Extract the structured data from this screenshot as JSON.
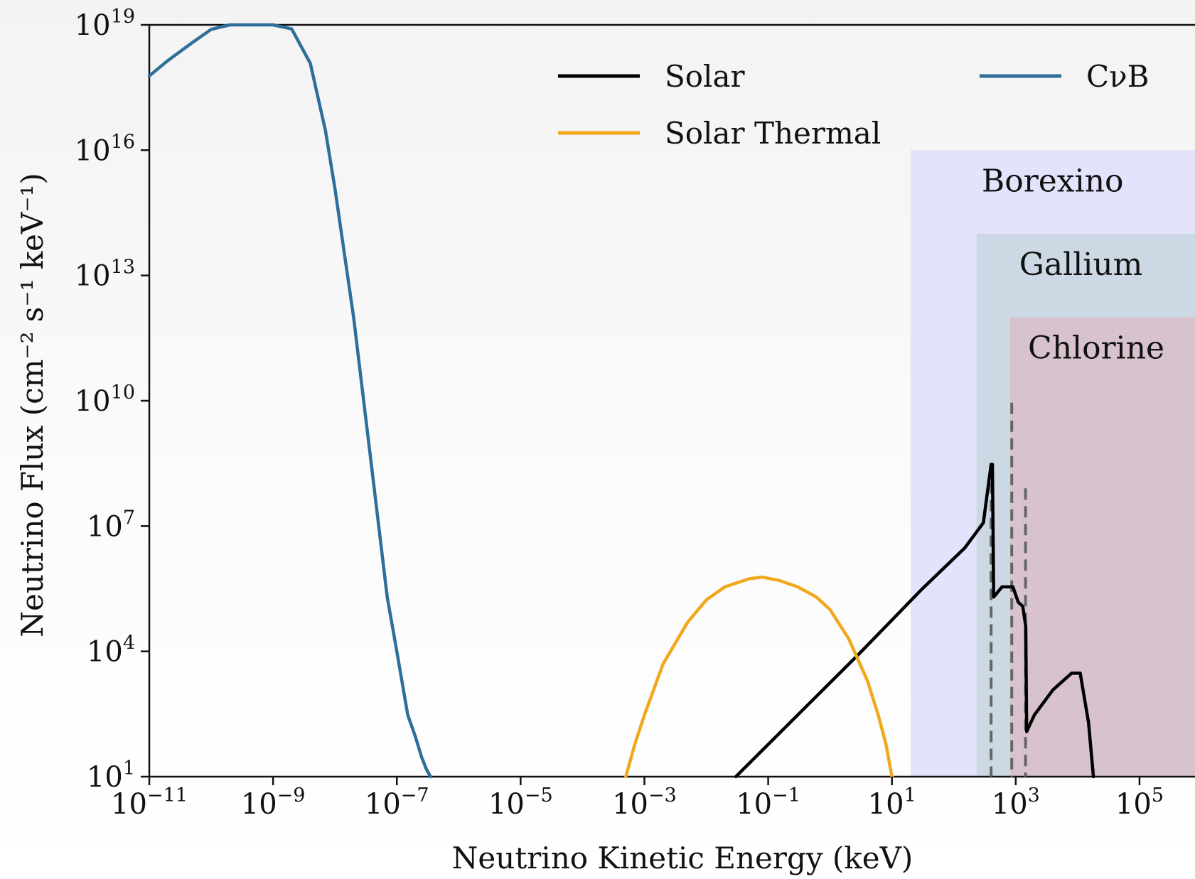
{
  "chart_data": {
    "type": "line",
    "xscale": "log",
    "yscale": "log",
    "xlim": [
      1e-11,
      1000000.0
    ],
    "ylim": [
      10,
      1e+19
    ],
    "xlabel": "Neutrino Kinetic Energy (keV)",
    "ylabel": "Neutrino Flux (cm⁻² s⁻¹ keV⁻¹)",
    "x_ticks": [
      {
        "base": "10",
        "exp": "−11",
        "value": 1e-11
      },
      {
        "base": "10",
        "exp": "−9",
        "value": 1e-09
      },
      {
        "base": "10",
        "exp": "−7",
        "value": 1e-07
      },
      {
        "base": "10",
        "exp": "−5",
        "value": 1e-05
      },
      {
        "base": "10",
        "exp": "−3",
        "value": 0.001
      },
      {
        "base": "10",
        "exp": "−1",
        "value": 0.1
      },
      {
        "base": "10",
        "exp": "1",
        "value": 10
      },
      {
        "base": "10",
        "exp": "3",
        "value": 1000
      },
      {
        "base": "10",
        "exp": "5",
        "value": 100000
      }
    ],
    "y_ticks": [
      {
        "base": "10",
        "exp": "1",
        "value": 10
      },
      {
        "base": "10",
        "exp": "4",
        "value": 10000.0
      },
      {
        "base": "10",
        "exp": "7",
        "value": 10000000.0
      },
      {
        "base": "10",
        "exp": "10",
        "value": 10000000000.0
      },
      {
        "base": "10",
        "exp": "13",
        "value": 10000000000000.0
      },
      {
        "base": "10",
        "exp": "16",
        "value": 1e+16
      },
      {
        "base": "10",
        "exp": "19",
        "value": 1e+19
      }
    ],
    "legend": {
      "placement": "upper right"
    },
    "series": [
      {
        "name": "Solar",
        "color": "#000000",
        "x": [
          0.03,
          0.3,
          3,
          30,
          150,
          300,
          400,
          420,
          440,
          600,
          900,
          1100,
          1300,
          1450,
          1500,
          2000,
          4000,
          8000,
          11000,
          15000,
          18000
        ],
        "y": [
          10,
          300.0,
          9000.0,
          300000.0,
          3000000.0,
          12000000.0,
          300000000.0,
          300000000.0,
          200000.0,
          350000.0,
          350000.0,
          150000.0,
          120000.0,
          40000.0,
          120.0,
          300.0,
          1200.0,
          3000.0,
          3000.0,
          200.0,
          10
        ]
      },
      {
        "name": "Solar Thermal",
        "color": "#f0a81c",
        "x": [
          0.0005,
          0.0007,
          0.001,
          0.002,
          0.005,
          0.01,
          0.02,
          0.05,
          0.08,
          0.15,
          0.3,
          0.6,
          1,
          2,
          4,
          6,
          8,
          10
        ],
        "y": [
          10,
          60,
          300,
          5000,
          50000.0,
          170000.0,
          350000.0,
          550000.0,
          600000.0,
          500000.0,
          350000.0,
          200000.0,
          100000.0,
          20000.0,
          2000,
          300,
          60,
          10
        ]
      },
      {
        "name": "CνB",
        "color": "#2e6f9a",
        "x": [
          1e-11,
          2e-11,
          5e-11,
          1e-10,
          2e-10,
          4e-10,
          6e-10,
          8e-10,
          1e-09,
          2e-09,
          4e-09,
          7e-09,
          1e-08,
          2e-08,
          4e-08,
          7e-08,
          1e-07,
          1.5e-07,
          2e-07,
          2.5e-07,
          3e-07,
          3.5e-07
        ],
        "y": [
          6e+17,
          1.4e+18,
          3.8e+18,
          7.8e+18,
          1.4e+19,
          2.1e+19,
          2.3e+19,
          2.3e+19,
          2.1e+19,
          8e+18,
          1.2e+18,
          3e+16,
          1200000000000000.0,
          1000000000000.0,
          200000000.0,
          200000.0,
          10000.0,
          300,
          90,
          30,
          15,
          10
        ]
      }
    ],
    "regions": [
      {
        "label": "Borexino",
        "x_start": 20,
        "y_top": 1e+16,
        "color": "#e3e3fb"
      },
      {
        "label": "Gallium",
        "x_start": 233,
        "y_top": 100000000000000.0,
        "color": "#ccd9e4"
      },
      {
        "label": "Chlorine",
        "x_start": 814,
        "y_top": 1000000000000.0,
        "color": "#d7c2cd"
      }
    ],
    "threshold_lines": [
      {
        "x": 400,
        "y_top": 300000000.0
      },
      {
        "x": 862,
        "y_top": 9000000000.0
      },
      {
        "x": 1440,
        "y_top": 80000000.0
      }
    ]
  }
}
